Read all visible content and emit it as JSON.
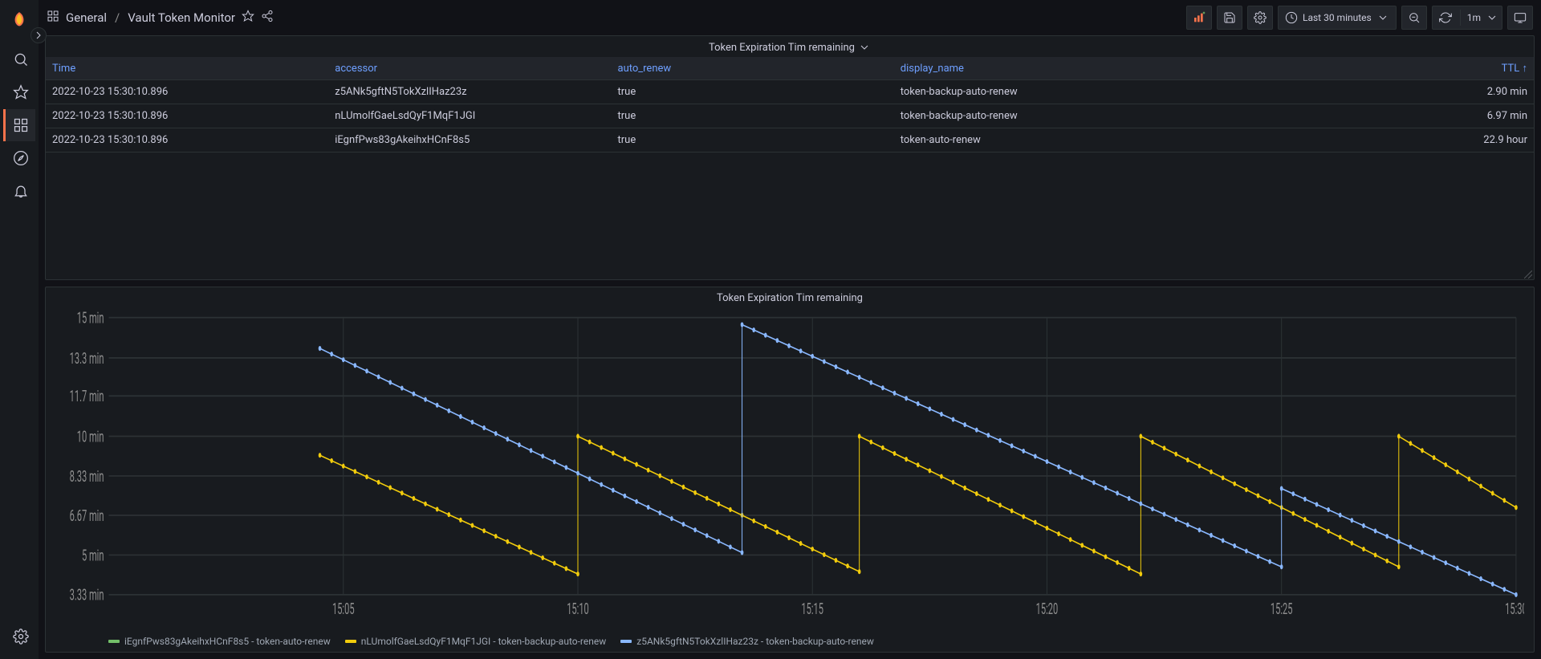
{
  "breadcrumb": {
    "folder": "General",
    "dashboard": "Vault Token Monitor"
  },
  "toolbar": {
    "time_range": "Last 30 minutes",
    "refresh_interval": "1m"
  },
  "table_panel": {
    "title": "Token Expiration Tim remaining",
    "columns": [
      {
        "label": "Time",
        "key": "time",
        "width": "19%"
      },
      {
        "label": "accessor",
        "key": "accessor",
        "width": "19%"
      },
      {
        "label": "auto_renew",
        "key": "auto",
        "width": "19%"
      },
      {
        "label": "display_name",
        "key": "display",
        "width": "19%"
      },
      {
        "label": "TTL",
        "key": "ttl",
        "width": "24%",
        "sorted": "asc"
      }
    ],
    "rows": [
      {
        "time": "2022-10-23 15:30:10.896",
        "accessor": "z5ANk5gftN5TokXzlIHaz23z",
        "auto": "true",
        "display": "token-backup-auto-renew",
        "ttl": "2.90 min"
      },
      {
        "time": "2022-10-23 15:30:10.896",
        "accessor": "nLUmolfGaeLsdQyF1MqF1JGI",
        "auto": "true",
        "display": "token-backup-auto-renew",
        "ttl": "6.97 min"
      },
      {
        "time": "2022-10-23 15:30:10.896",
        "accessor": "iEgnfPws83gAkeihxHCnF8s5",
        "auto": "true",
        "display": "token-auto-renew",
        "ttl": "22.9 hour"
      }
    ]
  },
  "chart_panel": {
    "title": "Token Expiration Tim remaining",
    "type": "line",
    "background": "#181b1f",
    "grid_color": "#2c3235",
    "axis_text_color": "#8e8e8e",
    "x_domain": [
      0,
      30
    ],
    "y_domain": [
      3.33,
      15
    ],
    "y_ticks": [
      3.33,
      5,
      6.67,
      8.33,
      10,
      11.7,
      13.3,
      15
    ],
    "y_tick_labels": [
      "3.33 min",
      "5 min",
      "6.67 min",
      "8.33 min",
      "10 min",
      "11.7 min",
      "13.3 min",
      "15 min"
    ],
    "x_ticks": [
      5,
      10,
      15,
      20,
      25,
      30
    ],
    "x_tick_labels": [
      "15:05",
      "15:10",
      "15:15",
      "15:20",
      "15:25",
      "15:30"
    ],
    "marker_radius": 1.8,
    "line_width": 1,
    "series": [
      {
        "name": "iEgnfPws83gAkeihxHCnF8s5 - token-auto-renew",
        "color": "#73bf69",
        "points": []
      },
      {
        "name": "nLUmolfGaeLsdQyF1MqF1JGI - token-backup-auto-renew",
        "color": "#f2cc0c",
        "segments": [
          {
            "x0": 4.5,
            "y0": 9.2,
            "x1": 10.0,
            "y1": 4.2
          },
          {
            "x0": 10.0,
            "y0": 10.0,
            "x1": 16.0,
            "y1": 4.3
          },
          {
            "x0": 16.0,
            "y0": 10.0,
            "x1": 22.0,
            "y1": 4.2
          },
          {
            "x0": 22.0,
            "y0": 10.0,
            "x1": 27.5,
            "y1": 4.5
          },
          {
            "x0": 27.5,
            "y0": 10.0,
            "x1": 30.0,
            "y1": 7.0
          }
        ]
      },
      {
        "name": "z5ANk5gftN5TokXzlIHaz23z - token-backup-auto-renew",
        "color": "#8ab8ff",
        "segments": [
          {
            "x0": 4.5,
            "y0": 13.7,
            "x1": 13.5,
            "y1": 5.1
          },
          {
            "x0": 13.5,
            "y0": 14.7,
            "x1": 25.0,
            "y1": 4.5
          },
          {
            "x0": 25.0,
            "y0": 7.8,
            "x1": 30.0,
            "y1": 3.33
          }
        ]
      }
    ]
  }
}
